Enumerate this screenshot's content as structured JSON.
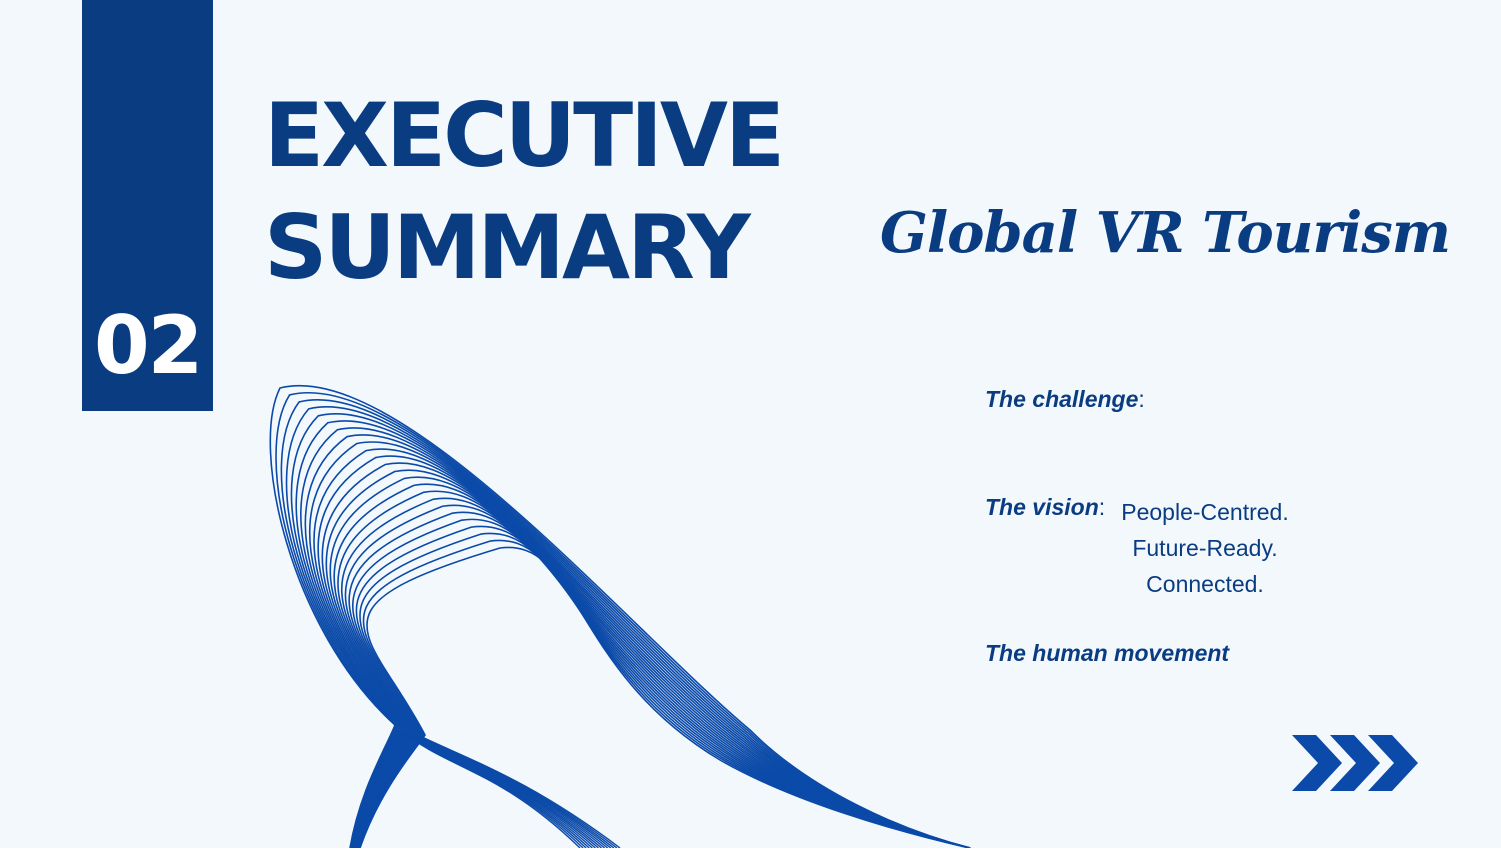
{
  "section_number": "02",
  "title": {
    "line1": "EXECUTIVE",
    "line2": "SUMMARY"
  },
  "subtitle": "Global VR Tourism",
  "points": {
    "challenge": {
      "label": "The challenge",
      "suffix": ":"
    },
    "vision": {
      "label": "The vision",
      "suffix": ":",
      "lines": [
        "People-Centred.",
        "Future-Ready.",
        "Connected."
      ]
    },
    "movement": {
      "label": "The human movement"
    }
  },
  "colors": {
    "brand": "#0a3c82",
    "background": "#f3f8fd",
    "line_art": "#0b4aa8"
  },
  "icons": {
    "next": "chevron-triple-right-icon",
    "decoration": "wave-lines"
  }
}
